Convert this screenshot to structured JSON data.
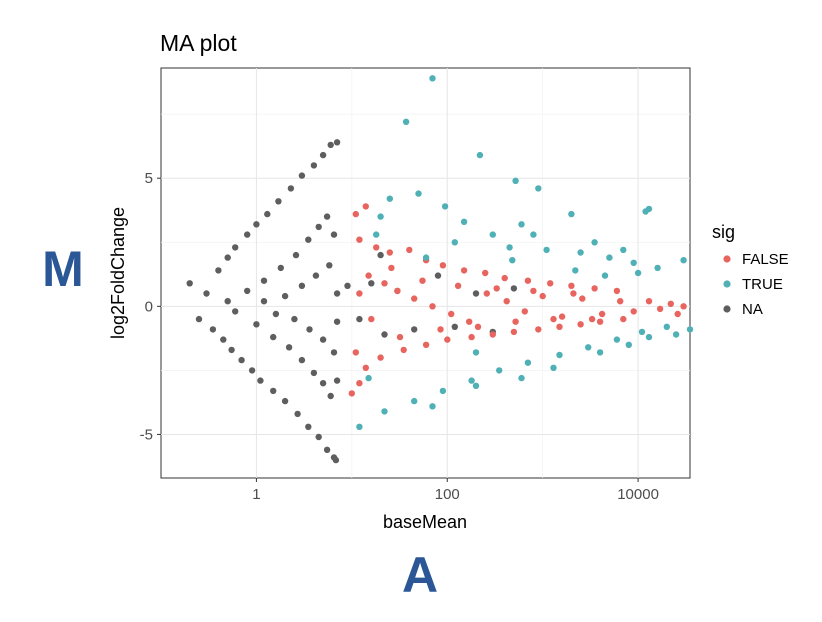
{
  "chart_data": {
    "type": "scatter",
    "title": "MA plot",
    "xlabel": "baseMean",
    "ylabel": "log2FoldChange",
    "x_scale": "log10",
    "xlim": [
      0.1,
      35000
    ],
    "ylim": [
      -6.7,
      9.3
    ],
    "x_ticks": [
      {
        "value": 1,
        "label": "1"
      },
      {
        "value": 100,
        "label": "100"
      },
      {
        "value": 10000,
        "label": "10000"
      }
    ],
    "y_ticks": [
      {
        "value": 5,
        "label": "5"
      },
      {
        "value": 0,
        "label": "0"
      },
      {
        "value": -5,
        "label": "-5"
      }
    ],
    "grid": true,
    "legend": {
      "title": "sig",
      "placement": "right",
      "entries": [
        {
          "label": "FALSE",
          "color": "#e8655f"
        },
        {
          "label": "TRUE",
          "color": "#4fb0b6"
        },
        {
          "label": "NA",
          "color": "#5e5e5e"
        }
      ]
    },
    "series": [
      {
        "name": "FALSE",
        "color": "#e8655f",
        "points": [
          [
            11.0,
            3.6
          ],
          [
            14.0,
            3.9
          ],
          [
            12.0,
            2.6
          ],
          [
            18.0,
            2.3
          ],
          [
            25.0,
            2.1
          ],
          [
            40.0,
            2.2
          ],
          [
            60.0,
            1.8
          ],
          [
            90.0,
            1.6
          ],
          [
            150.0,
            1.4
          ],
          [
            250.0,
            1.3
          ],
          [
            400.0,
            1.1
          ],
          [
            700.0,
            1.0
          ],
          [
            1200.0,
            0.9
          ],
          [
            2000.0,
            0.8
          ],
          [
            3500.0,
            0.7
          ],
          [
            6000.0,
            0.6
          ],
          [
            11.0,
            -1.8
          ],
          [
            14.0,
            -2.4
          ],
          [
            20.0,
            -2.0
          ],
          [
            35.0,
            -1.7
          ],
          [
            60.0,
            -1.5
          ],
          [
            100.0,
            -1.3
          ],
          [
            180.0,
            -1.2
          ],
          [
            300.0,
            -1.1
          ],
          [
            500.0,
            -1.0
          ],
          [
            900.0,
            -0.9
          ],
          [
            1500.0,
            -0.8
          ],
          [
            2500.0,
            -0.7
          ],
          [
            4000.0,
            -0.6
          ],
          [
            7000.0,
            -0.5
          ],
          [
            10.0,
            -3.4
          ],
          [
            12.0,
            -3.0
          ],
          [
            15.0,
            1.2
          ],
          [
            22.0,
            0.9
          ],
          [
            30.0,
            0.6
          ],
          [
            45.0,
            0.3
          ],
          [
            70.0,
            0.0
          ],
          [
            110.0,
            -0.3
          ],
          [
            170.0,
            -0.6
          ],
          [
            260.0,
            0.5
          ],
          [
            420.0,
            0.2
          ],
          [
            650.0,
            -0.2
          ],
          [
            1000.0,
            0.4
          ],
          [
            1600.0,
            -0.4
          ],
          [
            2600.0,
            0.3
          ],
          [
            4200.0,
            -0.3
          ],
          [
            6500.0,
            0.2
          ],
          [
            9000.0,
            -0.2
          ],
          [
            13000.0,
            0.2
          ],
          [
            17000.0,
            -0.1
          ],
          [
            22000.0,
            0.1
          ],
          [
            30000.0,
            0.0
          ],
          [
            40000.0,
            0.1
          ],
          [
            55000.0,
            -0.1
          ],
          [
            65000.0,
            0.1
          ],
          [
            48000.0,
            -0.2
          ],
          [
            36000.0,
            0.3
          ],
          [
            26000.0,
            -0.3
          ],
          [
            12.0,
            0.5
          ],
          [
            16.0,
            -0.5
          ],
          [
            26.0,
            1.5
          ],
          [
            32.0,
            -1.2
          ],
          [
            55.0,
            1.0
          ],
          [
            85.0,
            -0.9
          ],
          [
            130.0,
            0.8
          ],
          [
            210.0,
            -0.8
          ],
          [
            330.0,
            0.7
          ],
          [
            520.0,
            -0.6
          ],
          [
            800.0,
            0.6
          ],
          [
            1300.0,
            -0.5
          ],
          [
            2100.0,
            0.5
          ],
          [
            3300.0,
            -0.5
          ]
        ]
      },
      {
        "name": "TRUE",
        "color": "#4fb0b6",
        "points": [
          [
            70.0,
            8.9
          ],
          [
            37.0,
            7.2
          ],
          [
            220.0,
            5.9
          ],
          [
            520.0,
            4.9
          ],
          [
            900.0,
            4.6
          ],
          [
            13000.0,
            3.8
          ],
          [
            12000.0,
            3.7
          ],
          [
            2000.0,
            3.6
          ],
          [
            600.0,
            3.2
          ],
          [
            300.0,
            2.8
          ],
          [
            150.0,
            3.3
          ],
          [
            95.0,
            3.9
          ],
          [
            50.0,
            4.4
          ],
          [
            25.0,
            4.2
          ],
          [
            20.0,
            3.5
          ],
          [
            120.0,
            2.5
          ],
          [
            450.0,
            2.3
          ],
          [
            1100.0,
            2.2
          ],
          [
            2500.0,
            2.1
          ],
          [
            5000.0,
            1.9
          ],
          [
            9000.0,
            1.7
          ],
          [
            16000.0,
            1.5
          ],
          [
            30000.0,
            1.8
          ],
          [
            42000.0,
            1.0
          ],
          [
            35000.0,
            -0.9
          ],
          [
            20000.0,
            -0.8
          ],
          [
            11000.0,
            -1.0
          ],
          [
            6000.0,
            -1.3
          ],
          [
            3000.0,
            -1.6
          ],
          [
            1500.0,
            -1.9
          ],
          [
            700.0,
            -2.2
          ],
          [
            350.0,
            -2.5
          ],
          [
            180.0,
            -2.9
          ],
          [
            90.0,
            -3.3
          ],
          [
            45.0,
            -3.7
          ],
          [
            22.0,
            -4.1
          ],
          [
            12.0,
            -4.7
          ],
          [
            70.0,
            -3.9
          ],
          [
            200.0,
            -3.1
          ],
          [
            600.0,
            -2.8
          ],
          [
            1300.0,
            -2.4
          ],
          [
            4000.0,
            -1.8
          ],
          [
            8000.0,
            -1.5
          ],
          [
            13000.0,
            -1.2
          ],
          [
            25000.0,
            -1.1
          ],
          [
            15.0,
            -2.8
          ],
          [
            18.0,
            2.8
          ],
          [
            800.0,
            2.8
          ],
          [
            3500.0,
            2.5
          ],
          [
            7000.0,
            2.2
          ],
          [
            200.0,
            -1.8
          ],
          [
            60.0,
            1.9
          ],
          [
            480.0,
            1.8
          ],
          [
            2200.0,
            1.4
          ],
          [
            4500.0,
            1.2
          ],
          [
            10000.0,
            1.3
          ]
        ]
      },
      {
        "name": "NA",
        "color": "#5e5e5e",
        "points": [
          [
            0.2,
            0.9
          ],
          [
            0.25,
            -0.5
          ],
          [
            0.3,
            0.5
          ],
          [
            0.35,
            -0.9
          ],
          [
            0.4,
            1.4
          ],
          [
            0.45,
            -1.3
          ],
          [
            0.5,
            1.9
          ],
          [
            0.55,
            -1.7
          ],
          [
            0.6,
            2.3
          ],
          [
            0.7,
            -2.1
          ],
          [
            0.8,
            2.8
          ],
          [
            0.9,
            -2.5
          ],
          [
            1.0,
            3.2
          ],
          [
            1.1,
            -2.9
          ],
          [
            1.3,
            3.6
          ],
          [
            1.5,
            -3.3
          ],
          [
            1.7,
            4.1
          ],
          [
            2.0,
            -3.7
          ],
          [
            2.3,
            4.6
          ],
          [
            2.7,
            -4.2
          ],
          [
            3.0,
            5.1
          ],
          [
            3.5,
            -4.7
          ],
          [
            4.0,
            5.5
          ],
          [
            4.5,
            -5.1
          ],
          [
            5.0,
            5.9
          ],
          [
            5.5,
            -5.6
          ],
          [
            6.0,
            6.3
          ],
          [
            6.5,
            -5.9
          ],
          [
            7.0,
            6.4
          ],
          [
            6.8,
            -6.0
          ],
          [
            0.5,
            0.2
          ],
          [
            0.6,
            -0.2
          ],
          [
            0.8,
            0.6
          ],
          [
            1.0,
            -0.7
          ],
          [
            1.2,
            1.0
          ],
          [
            1.5,
            -1.2
          ],
          [
            1.8,
            1.5
          ],
          [
            2.2,
            -1.6
          ],
          [
            2.6,
            2.0
          ],
          [
            3.0,
            -2.1
          ],
          [
            3.5,
            2.6
          ],
          [
            4.0,
            -2.6
          ],
          [
            4.5,
            3.1
          ],
          [
            5.0,
            -3.0
          ],
          [
            5.5,
            3.5
          ],
          [
            6.0,
            -3.5
          ],
          [
            6.5,
            2.8
          ],
          [
            7.0,
            -2.9
          ],
          [
            1.2,
            0.2
          ],
          [
            1.6,
            -0.3
          ],
          [
            2.0,
            0.4
          ],
          [
            2.5,
            -0.5
          ],
          [
            3.0,
            0.8
          ],
          [
            3.6,
            -0.9
          ],
          [
            4.2,
            1.2
          ],
          [
            5.0,
            -1.3
          ],
          [
            5.8,
            1.6
          ],
          [
            6.5,
            -1.8
          ],
          [
            7.0,
            0.5
          ],
          [
            7.0,
            -0.6
          ],
          [
            9.0,
            0.8
          ],
          [
            12.0,
            -0.5
          ],
          [
            16.0,
            0.9
          ],
          [
            22.0,
            -1.1
          ],
          [
            30.0,
            0.6
          ],
          [
            45.0,
            -0.9
          ],
          [
            80.0,
            1.2
          ],
          [
            120.0,
            -0.8
          ],
          [
            200.0,
            0.5
          ],
          [
            300.0,
            -1.0
          ],
          [
            500.0,
            0.7
          ],
          [
            20.0,
            2.0
          ]
        ]
      }
    ]
  },
  "annotations": {
    "y_letter": "M",
    "x_letter": "A",
    "letter_color": "#2b5797"
  }
}
